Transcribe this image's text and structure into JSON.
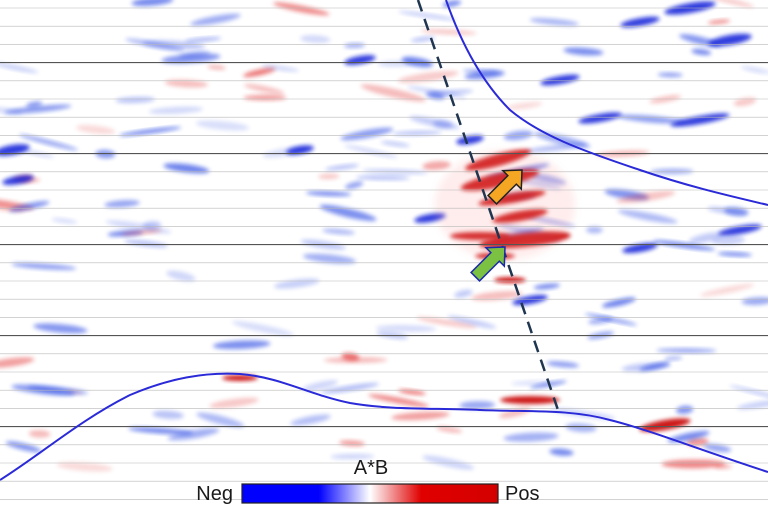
{
  "colorbar": {
    "title": "A*B",
    "low_label": "Neg",
    "high_label": "Pos",
    "colors": [
      "#0000ff",
      "#ffffff",
      "#d40000"
    ]
  },
  "arrows": {
    "orange": "#f5a623",
    "green": "#7cc242"
  },
  "curve_color": "#2a2ad8",
  "dashed_line_color": "#1f3550"
}
